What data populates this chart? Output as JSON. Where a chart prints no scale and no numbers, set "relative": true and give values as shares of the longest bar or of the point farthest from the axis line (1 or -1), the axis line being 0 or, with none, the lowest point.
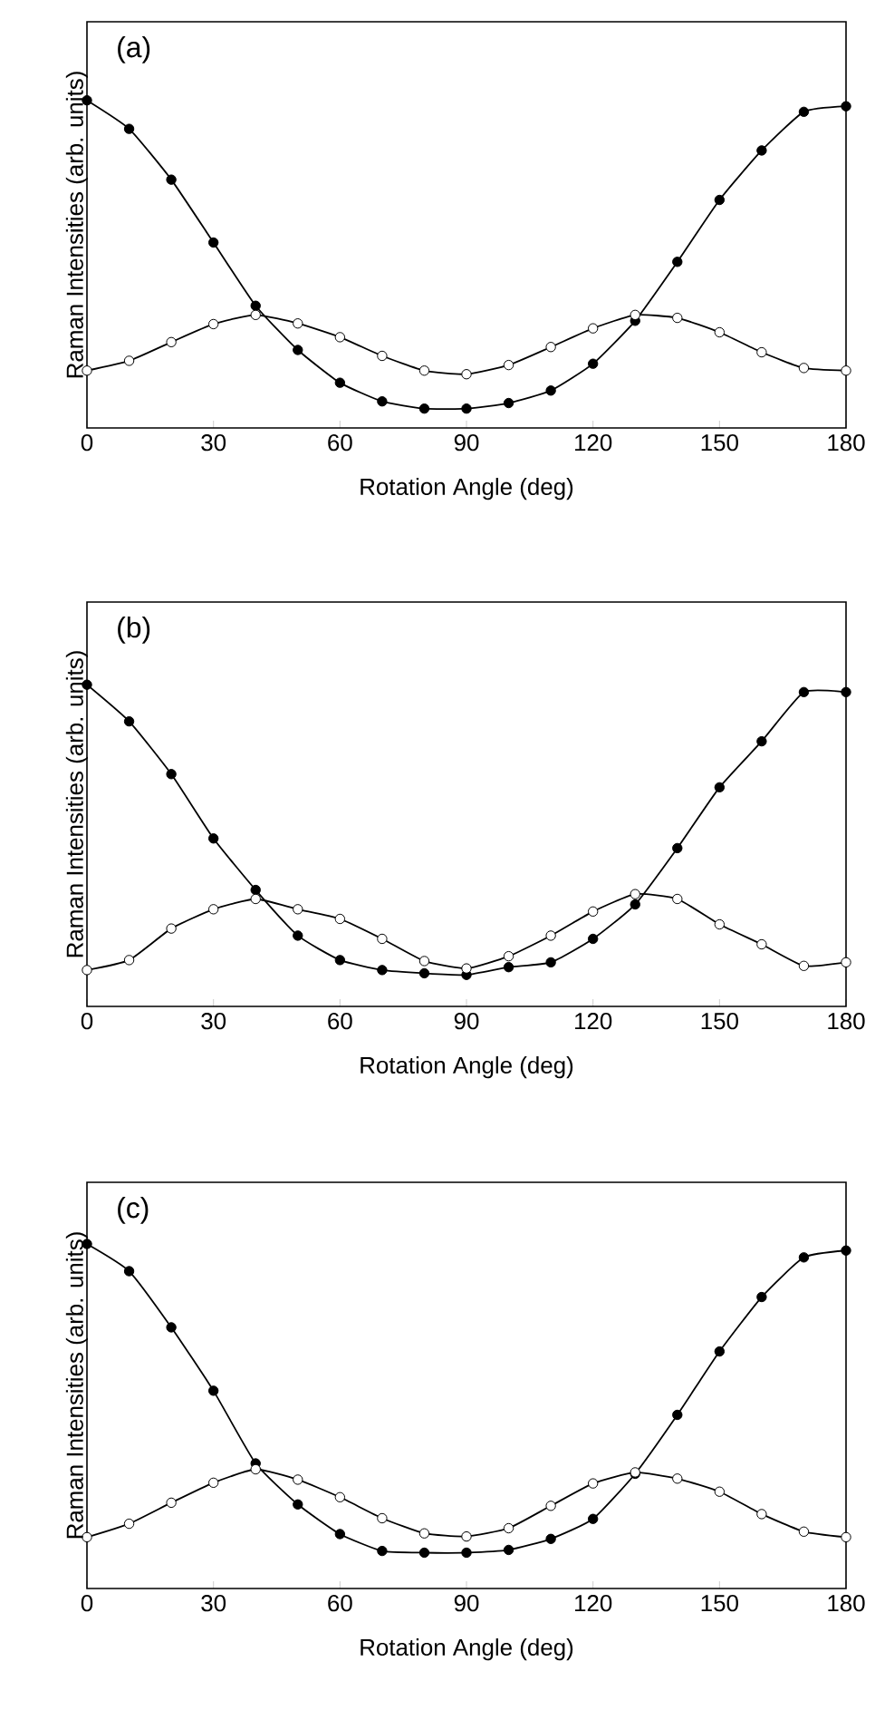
{
  "chart_data": [
    {
      "type": "line",
      "title": "(a)",
      "xlabel": "Rotation Angle (deg)",
      "ylabel": "Raman Intensities (arb. units)",
      "relative": true,
      "tick_labels": "x",
      "marker": "circle",
      "line_style": "solid",
      "grid": false,
      "x": [
        0,
        10,
        20,
        30,
        40,
        50,
        60,
        70,
        80,
        90,
        100,
        110,
        120,
        130,
        140,
        150,
        160,
        170,
        180
      ],
      "xlim": [
        0,
        180
      ],
      "xticks": [
        0,
        30,
        60,
        90,
        120,
        150,
        180
      ],
      "series": [
        {
          "color": "#000000",
          "values": [
            1,
            0.913,
            0.758,
            0.566,
            0.373,
            0.238,
            0.138,
            0.081,
            0.059,
            0.059,
            0.076,
            0.114,
            0.196,
            0.327,
            0.507,
            0.696,
            0.847,
            0.965,
            0.982
          ]
        },
        {
          "color": "#000000",
          "values": [
            0.175,
            0.205,
            0.262,
            0.317,
            0.345,
            0.319,
            0.277,
            0.22,
            0.175,
            0.164,
            0.192,
            0.247,
            0.304,
            0.345,
            0.336,
            0.292,
            0.231,
            0.183,
            0.175
          ]
        }
      ]
    },
    {
      "type": "line",
      "title": "(b)",
      "xlabel": "Rotation Angle (deg)",
      "ylabel": "Raman Intensities (arb. units)",
      "relative": true,
      "tick_labels": "x",
      "marker": "circle",
      "line_style": "solid",
      "grid": false,
      "x": [
        0,
        10,
        20,
        30,
        40,
        50,
        60,
        70,
        80,
        90,
        100,
        110,
        120,
        130,
        140,
        150,
        160,
        170,
        180
      ],
      "xlim": [
        0,
        180
      ],
      "xticks": [
        0,
        30,
        60,
        90,
        120,
        150,
        180
      ],
      "series": [
        {
          "color": "#000000",
          "values": [
            1,
            0.886,
            0.722,
            0.522,
            0.362,
            0.22,
            0.144,
            0.113,
            0.103,
            0.098,
            0.122,
            0.137,
            0.21,
            0.317,
            0.492,
            0.681,
            0.824,
            0.977,
            0.977
          ]
        },
        {
          "color": "#000000",
          "values": [
            0.113,
            0.144,
            0.242,
            0.302,
            0.334,
            0.302,
            0.272,
            0.21,
            0.141,
            0.118,
            0.156,
            0.22,
            0.295,
            0.349,
            0.334,
            0.255,
            0.193,
            0.126,
            0.137
          ]
        }
      ]
    },
    {
      "type": "line",
      "title": "(c)",
      "xlabel": "Rotation Angle (deg)",
      "ylabel": "Raman Intensities (arb. units)",
      "relative": true,
      "tick_labels": "x",
      "marker": "circle",
      "line_style": "solid",
      "grid": false,
      "x": [
        0,
        10,
        20,
        30,
        40,
        50,
        60,
        70,
        80,
        90,
        100,
        110,
        120,
        130,
        140,
        150,
        160,
        170,
        180
      ],
      "xlim": [
        0,
        180
      ],
      "xticks": [
        0,
        30,
        60,
        90,
        120,
        150,
        180
      ],
      "series": [
        {
          "color": "#000000",
          "values": [
            1,
            0.921,
            0.758,
            0.574,
            0.363,
            0.244,
            0.158,
            0.109,
            0.104,
            0.104,
            0.112,
            0.144,
            0.202,
            0.333,
            0.504,
            0.688,
            0.846,
            0.961,
            0.981
          ]
        },
        {
          "color": "#000000",
          "values": [
            0.149,
            0.188,
            0.249,
            0.307,
            0.346,
            0.316,
            0.265,
            0.204,
            0.16,
            0.151,
            0.175,
            0.24,
            0.305,
            0.337,
            0.319,
            0.281,
            0.216,
            0.165,
            0.149
          ]
        }
      ]
    }
  ]
}
